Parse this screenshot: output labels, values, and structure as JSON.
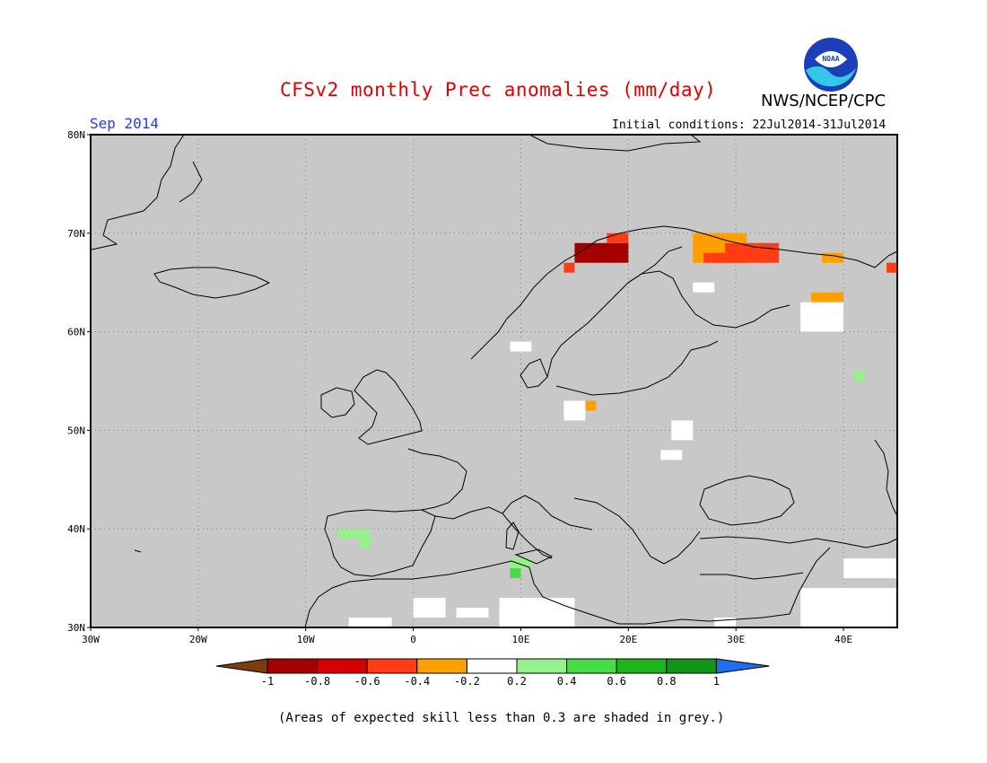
{
  "header": {
    "title": "CFSv2 monthly Prec anomalies (mm/day)",
    "agency": "NWS/NCEP/CPC",
    "logo_text": "NOAA",
    "target_month": "Sep 2014",
    "initial_conditions": "Initial conditions: 22Jul2014-31Jul2014"
  },
  "map": {
    "lon_range": [
      -30,
      45
    ],
    "lat_range": [
      30,
      80
    ],
    "background_color": "#c8c8c8",
    "gridlines": "dotted",
    "lat_labels": [
      "30N",
      "40N",
      "50N",
      "60N",
      "70N",
      "80N"
    ],
    "lon_labels": [
      "30W",
      "20W",
      "10W",
      "0",
      "10E",
      "20E",
      "30E",
      "40E"
    ]
  },
  "colorbar": {
    "ticks": [
      "-1",
      "-0.8",
      "-0.6",
      "-0.4",
      "-0.2",
      "0.2",
      "0.4",
      "0.6",
      "0.8",
      "1"
    ],
    "colors": [
      "#7a3c10",
      "#a50000",
      "#d70000",
      "#ff3c14",
      "#ffa000",
      "#ffffff",
      "#96f08c",
      "#46dc46",
      "#1eb41e",
      "#0f9614",
      "#1e6ef0"
    ]
  },
  "footer": {
    "note": "(Areas of expected skill less than 0.3 are shaded in grey.)"
  },
  "anomaly_cells": [
    {
      "lon": 15,
      "lat": 69,
      "w": 5,
      "h": 2,
      "color": "#a50000"
    },
    {
      "lon": 18,
      "lat": 70,
      "w": 2,
      "h": 1,
      "color": "#ff3c14"
    },
    {
      "lon": 14,
      "lat": 67,
      "w": 1,
      "h": 1,
      "color": "#ff3c14"
    },
    {
      "lon": 26,
      "lat": 70,
      "w": 5,
      "h": 3,
      "color": "#ffa000"
    },
    {
      "lon": 29,
      "lat": 69,
      "w": 5,
      "h": 2,
      "color": "#ff3c14"
    },
    {
      "lon": 27,
      "lat": 68,
      "w": 4,
      "h": 1,
      "color": "#ff3c14"
    },
    {
      "lon": 38,
      "lat": 68,
      "w": 2,
      "h": 1,
      "color": "#ffa000"
    },
    {
      "lon": 44,
      "lat": 67,
      "w": 1,
      "h": 1,
      "color": "#ff3c14"
    },
    {
      "lon": 37,
      "lat": 64,
      "w": 3,
      "h": 1,
      "color": "#ffa000"
    },
    {
      "lon": 36,
      "lat": 63,
      "w": 4,
      "h": 3,
      "color": "#ffffff"
    },
    {
      "lon": 26,
      "lat": 65,
      "w": 2,
      "h": 1,
      "color": "#ffffff"
    },
    {
      "lon": 16,
      "lat": 53,
      "w": 1,
      "h": 1,
      "color": "#ffa000"
    },
    {
      "lon": 14,
      "lat": 53,
      "w": 2,
      "h": 2,
      "color": "#ffffff"
    },
    {
      "lon": 24,
      "lat": 51,
      "w": 2,
      "h": 2,
      "color": "#ffffff"
    },
    {
      "lon": 23,
      "lat": 48,
      "w": 2,
      "h": 1,
      "color": "#ffffff"
    },
    {
      "lon": 9,
      "lat": 59,
      "w": 2,
      "h": 1,
      "color": "#ffffff"
    },
    {
      "lon": 41,
      "lat": 56,
      "w": 1,
      "h": 1,
      "color": "#96f08c"
    },
    {
      "lon": -7,
      "lat": 40,
      "w": 3,
      "h": 1,
      "color": "#96f08c"
    },
    {
      "lon": -5,
      "lat": 39,
      "w": 1,
      "h": 1,
      "color": "#96f08c"
    },
    {
      "lon": 9,
      "lat": 37,
      "w": 2,
      "h": 1,
      "color": "#96f08c"
    },
    {
      "lon": 9,
      "lat": 36,
      "w": 1,
      "h": 1,
      "color": "#46dc46"
    },
    {
      "lon": -6,
      "lat": 31,
      "w": 4,
      "h": 1,
      "color": "#ffffff"
    },
    {
      "lon": 0,
      "lat": 33,
      "w": 3,
      "h": 2,
      "color": "#ffffff"
    },
    {
      "lon": 4,
      "lat": 32,
      "w": 3,
      "h": 1,
      "color": "#ffffff"
    },
    {
      "lon": 8,
      "lat": 33,
      "w": 7,
      "h": 3,
      "color": "#ffffff"
    },
    {
      "lon": 28,
      "lat": 31,
      "w": 2,
      "h": 1,
      "color": "#ffffff"
    },
    {
      "lon": 36,
      "lat": 34,
      "w": 9,
      "h": 4,
      "color": "#ffffff"
    },
    {
      "lon": 40,
      "lat": 37,
      "w": 5,
      "h": 2,
      "color": "#ffffff"
    }
  ]
}
